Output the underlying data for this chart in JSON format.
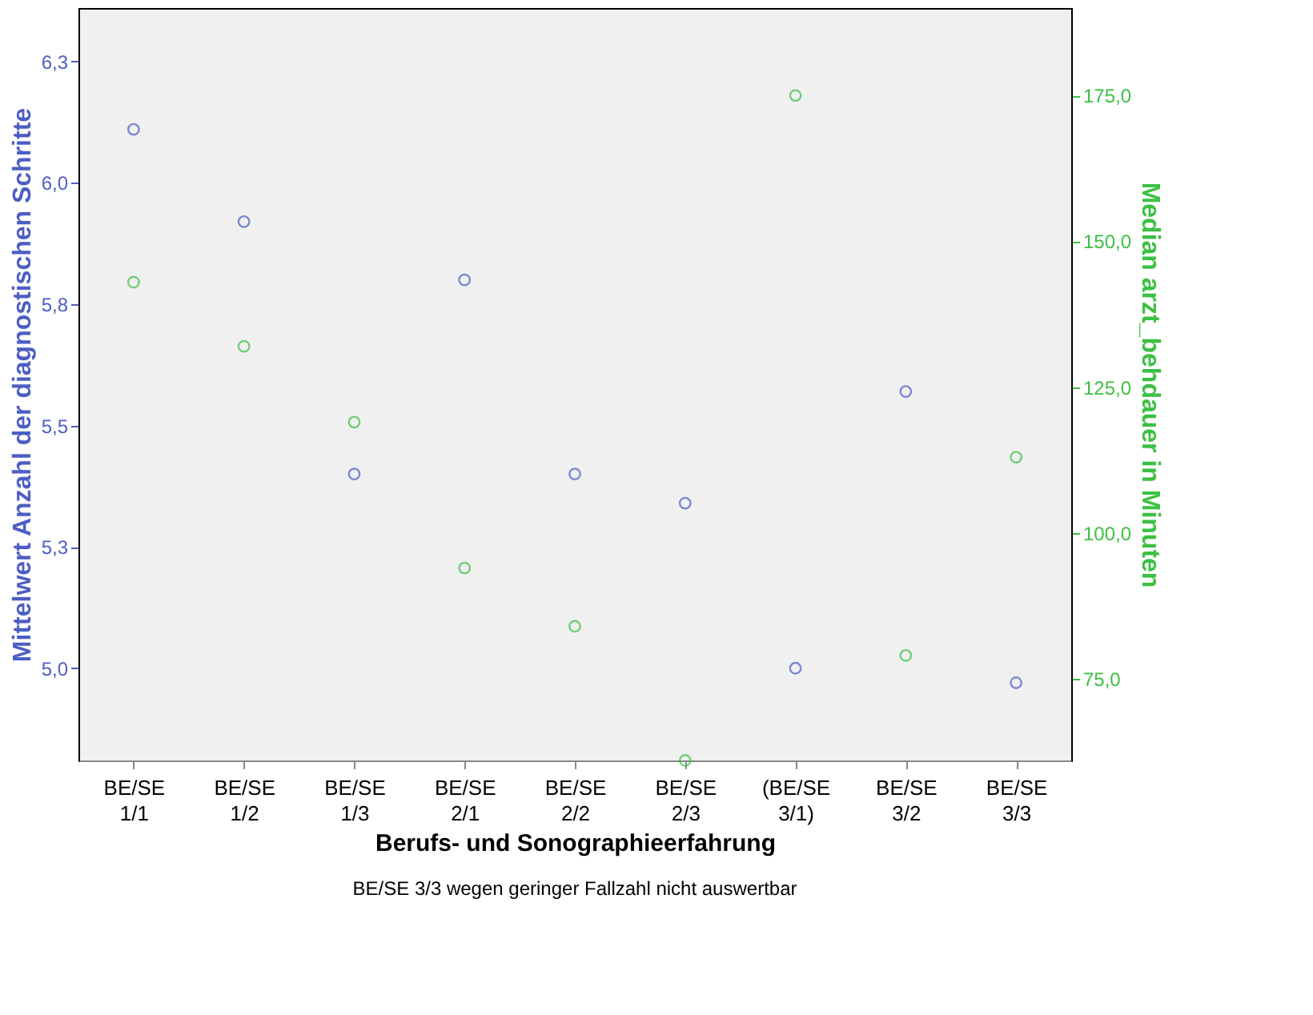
{
  "chart_data": {
    "type": "scatter",
    "xlabel": "Berufs- und Sonographieerfahrung",
    "ylabel": "Mittelwert Anzahl der diagnostischen Schritte",
    "y2label": "Median arzt_behdauer in Minuten",
    "categories": [
      "BE/SE\n1/1",
      "BE/SE\n1/2",
      "BE/SE\n1/3",
      "BE/SE\n2/1",
      "BE/SE\n2/2",
      "BE/SE\n2/3",
      "(BE/SE\n3/1)",
      "BE/SE\n3/2",
      "BE/SE\n3/3"
    ],
    "series": [
      {
        "color": "#4c5ec4",
        "values": [
          6.11,
          5.92,
          5.4,
          5.8,
          5.4,
          5.34,
          5.0,
          5.57,
          4.97
        ]
      },
      {
        "color": "#3cc043",
        "axis": "y2",
        "values": [
          143,
          132,
          119,
          94,
          84,
          61,
          175,
          79,
          113
        ]
      }
    ],
    "ylim": [
      4.81,
      6.36
    ],
    "yticks": [
      {
        "value": 5.0,
        "label": "5,0"
      },
      {
        "value": 5.25,
        "label": "5,3"
      },
      {
        "value": 5.5,
        "label": "5,5"
      },
      {
        "value": 5.75,
        "label": "5,8"
      },
      {
        "value": 6.0,
        "label": "6,0"
      },
      {
        "value": 6.25,
        "label": "6,3"
      }
    ],
    "y2lim": [
      61,
      190
    ],
    "y2ticks": [
      {
        "value": 75,
        "label": "75,0"
      },
      {
        "value": 100,
        "label": "100,0"
      },
      {
        "value": 125,
        "label": "125,0"
      },
      {
        "value": 150,
        "label": "150,0"
      },
      {
        "value": 175,
        "label": "175,0"
      }
    ],
    "marker": "circle",
    "grid": false,
    "legend": false,
    "annotations": [
      "BE/SE 3/3 wegen geringer Fallzahl nicht auswertbar"
    ]
  }
}
